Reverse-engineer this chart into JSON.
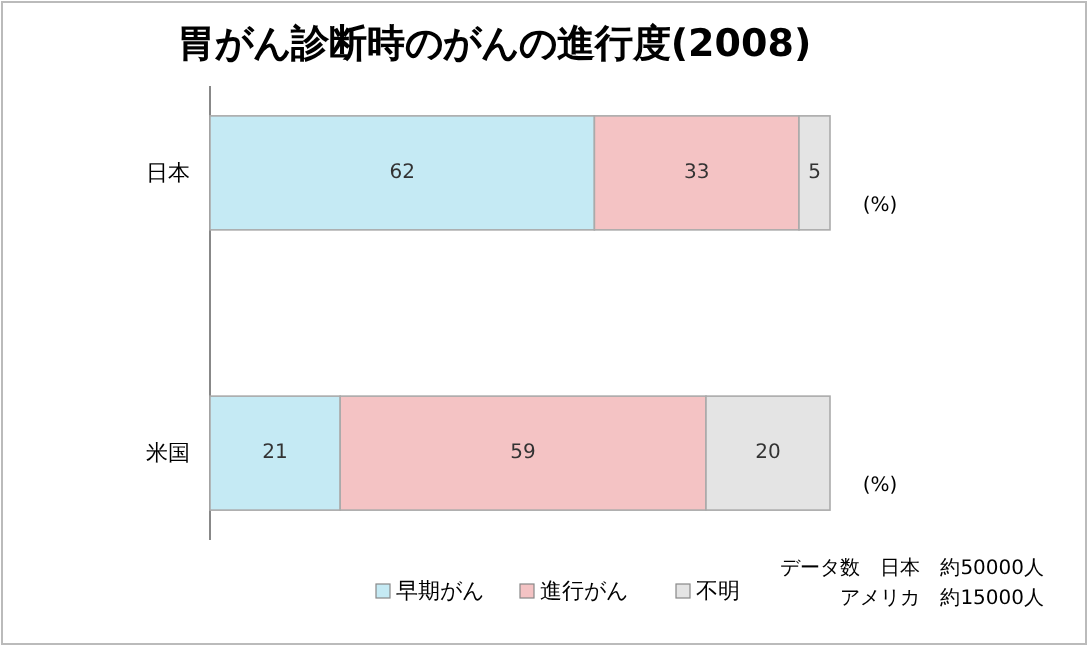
{
  "chart_data": {
    "type": "bar",
    "orientation": "horizontal",
    "stacked": true,
    "title": "胃がん診断時のがんの進行度(2008)",
    "categories": [
      "日本",
      "米国"
    ],
    "series": [
      {
        "name": "早期がん",
        "color": "#c5eaf4",
        "values": [
          62,
          21
        ]
      },
      {
        "name": "進行がん",
        "color": "#f4c3c4",
        "values": [
          33,
          59
        ]
      },
      {
        "name": "不明",
        "color": "#e4e4e4",
        "values": [
          5,
          20
        ]
      }
    ],
    "xlim": [
      0,
      100
    ],
    "tick_labels": "y",
    "data_labels": true,
    "legend": "bottom",
    "annotations": [
      "(%)",
      "(%)",
      "データ数　日本　約50000人",
      "アメリカ　約15000人"
    ]
  }
}
